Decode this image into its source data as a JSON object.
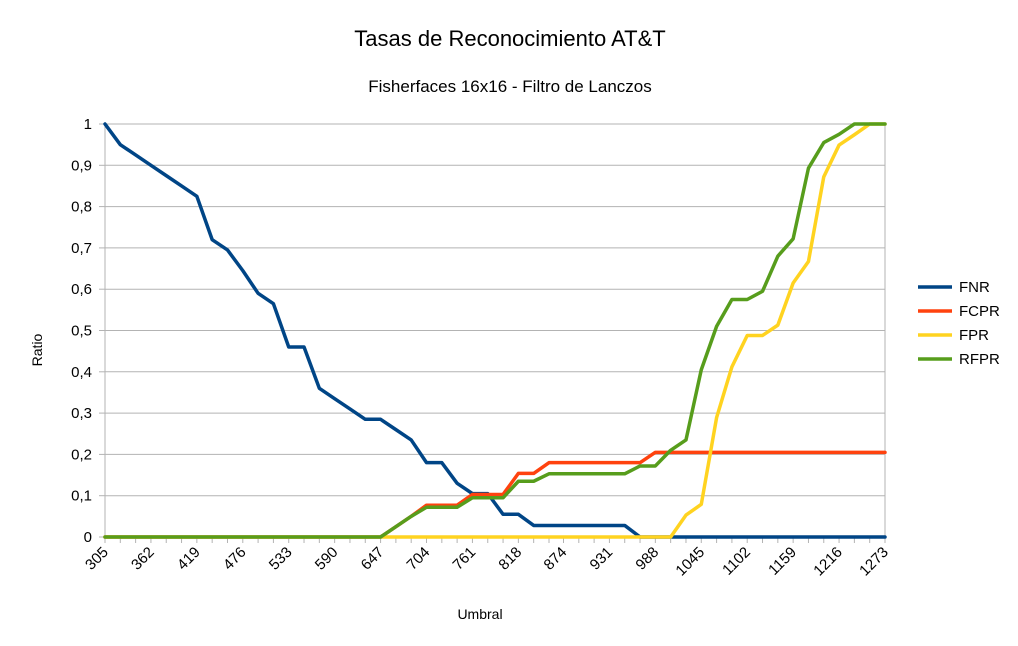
{
  "chart_data": {
    "type": "line",
    "title": "Tasas de Reconocimiento AT&T",
    "subtitle": "Fisherfaces 16x16 - Filtro de Lanczos",
    "xlabel": "Umbral",
    "ylabel": "Ratio",
    "ylim": [
      0,
      1
    ],
    "grid": true,
    "legend_position": "right",
    "x_tick_labels": [
      "305",
      "362",
      "419",
      "476",
      "533",
      "590",
      "647",
      "704",
      "761",
      "818",
      "874",
      "931",
      "988",
      "1045",
      "1102",
      "1159",
      "1216",
      "1273"
    ],
    "y_tick_labels": [
      "0",
      "0,1",
      "0,2",
      "0,3",
      "0,4",
      "0,5",
      "0,6",
      "0,7",
      "0,8",
      "0,9",
      "1"
    ],
    "x": [
      305,
      324,
      343,
      362,
      381,
      400,
      419,
      438,
      457,
      476,
      495,
      514,
      533,
      552,
      571,
      590,
      609,
      628,
      647,
      666,
      685,
      704,
      723,
      742,
      761,
      780,
      799,
      818,
      837,
      856,
      874,
      893,
      912,
      931,
      950,
      969,
      988,
      1007,
      1026,
      1045,
      1064,
      1083,
      1102,
      1121,
      1140,
      1159,
      1178,
      1197,
      1216,
      1235,
      1254,
      1273
    ],
    "series": [
      {
        "name": "FNR",
        "color": "#004586",
        "values": [
          1,
          0.95,
          0.925,
          0.9,
          0.875,
          0.85,
          0.825,
          0.72,
          0.695,
          0.645,
          0.59,
          0.565,
          0.46,
          0.46,
          0.36,
          0.335,
          0.31,
          0.285,
          0.285,
          0.26,
          0.235,
          0.18,
          0.18,
          0.13,
          0.105,
          0.105,
          0.055,
          0.055,
          0.028,
          0.028,
          0.028,
          0.028,
          0.028,
          0.028,
          0.028,
          0,
          0,
          0,
          0,
          0,
          0,
          0,
          0,
          0,
          0,
          0,
          0,
          0,
          0,
          0,
          0,
          0
        ]
      },
      {
        "name": "FCPR",
        "color": "#ff420e",
        "values": [
          0,
          0,
          0,
          0,
          0,
          0,
          0,
          0,
          0,
          0,
          0,
          0,
          0,
          0,
          0,
          0,
          0,
          0,
          0,
          0.025,
          0.05,
          0.077,
          0.077,
          0.077,
          0.103,
          0.103,
          0.103,
          0.154,
          0.154,
          0.18,
          0.18,
          0.18,
          0.18,
          0.18,
          0.18,
          0.18,
          0.205,
          0.205,
          0.205,
          0.205,
          0.205,
          0.205,
          0.205,
          0.205,
          0.205,
          0.205,
          0.205,
          0.205,
          0.205,
          0.205,
          0.205,
          0.205
        ]
      },
      {
        "name": "FPR",
        "color": "#ffd320",
        "values": [
          0,
          0,
          0,
          0,
          0,
          0,
          0,
          0,
          0,
          0,
          0,
          0,
          0,
          0,
          0,
          0,
          0,
          0,
          0,
          0,
          0,
          0,
          0,
          0,
          0,
          0,
          0,
          0,
          0,
          0,
          0,
          0,
          0,
          0,
          0,
          0,
          0,
          0,
          0.053,
          0.079,
          0.289,
          0.412,
          0.488,
          0.488,
          0.513,
          0.615,
          0.667,
          0.872,
          0.949,
          0.974,
          1,
          1
        ]
      },
      {
        "name": "RFPR",
        "color": "#579d1c",
        "values": [
          0,
          0,
          0,
          0,
          0,
          0,
          0,
          0,
          0,
          0,
          0,
          0,
          0,
          0,
          0,
          0,
          0,
          0,
          0,
          0.025,
          0.05,
          0.072,
          0.072,
          0.072,
          0.095,
          0.095,
          0.095,
          0.135,
          0.135,
          0.153,
          0.153,
          0.153,
          0.153,
          0.153,
          0.153,
          0.172,
          0.172,
          0.21,
          0.235,
          0.405,
          0.51,
          0.575,
          0.575,
          0.595,
          0.68,
          0.722,
          0.893,
          0.955,
          0.975,
          1,
          1,
          1
        ]
      }
    ]
  }
}
